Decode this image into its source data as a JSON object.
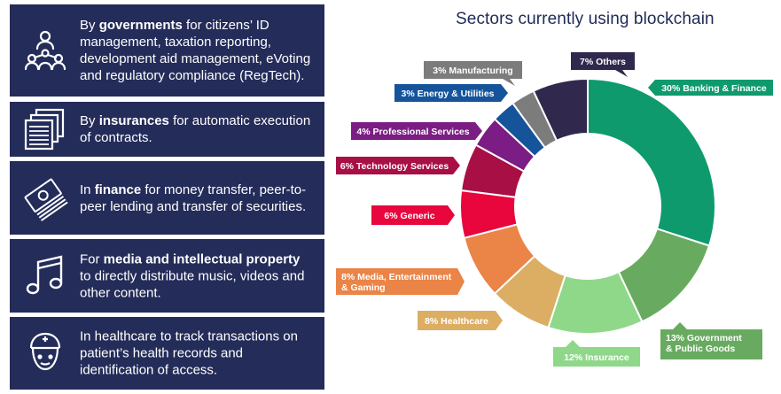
{
  "cards": [
    {
      "icon": "people-network-icon",
      "pre": "By ",
      "bold": "governments",
      "post": " for citizens’ ID management, taxation reporting, development aid management, eVoting and regulatory compliance (RegTech)."
    },
    {
      "icon": "documents-icon",
      "pre": "By ",
      "bold": "insurances",
      "post": " for automatic execution of contracts."
    },
    {
      "icon": "banknotes-icon",
      "pre": "In ",
      "bold": "finance",
      "post": " for money transfer, peer-to-peer lending and transfer of securities."
    },
    {
      "icon": "music-note-icon",
      "pre": "For ",
      "bold": "media and intellectual property",
      "post": " to directly distribute music, videos and other content."
    },
    {
      "icon": "nurse-icon",
      "pre": "",
      "bold": "",
      "post": "In healthcare to track transactions on patient’s health records and identification of access."
    }
  ],
  "chart_data": {
    "type": "pie",
    "title": "Sectors currently using blockchain",
    "slices": [
      {
        "label": "30% Banking & Finance",
        "value": 30,
        "color": "#0f9a6e"
      },
      {
        "label": "13% Government & Public Goods",
        "value": 13,
        "color": "#68ab60"
      },
      {
        "label": "12% Insurance",
        "value": 12,
        "color": "#8fd88a"
      },
      {
        "label": "8% Healthcare",
        "value": 8,
        "color": "#dcae63"
      },
      {
        "label": "8% Media, Entertainment & Gaming",
        "value": 8,
        "color": "#ea8447"
      },
      {
        "label": "6% Generic",
        "value": 6,
        "color": "#e8063c"
      },
      {
        "label": "6% Technology Services",
        "value": 6,
        "color": "#a80f45"
      },
      {
        "label": "4% Professional Services",
        "value": 4,
        "color": "#7b1d84"
      },
      {
        "label": "3% Energy & Utilities",
        "value": 3,
        "color": "#15549b"
      },
      {
        "label": "3% Manufacturing",
        "value": 3,
        "color": "#7c7c7c"
      },
      {
        "label": "7% Others",
        "value": 7,
        "color": "#30284d"
      }
    ]
  }
}
